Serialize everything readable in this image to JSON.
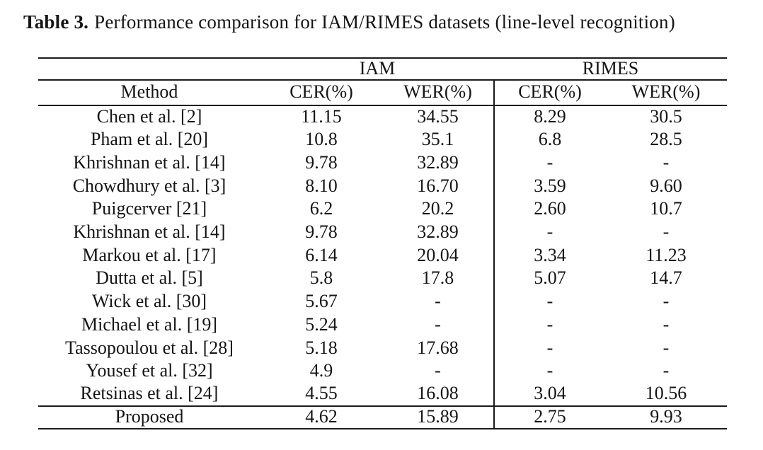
{
  "caption": {
    "label": "Table 3.",
    "text": "Performance comparison for IAM/RIMES datasets (line-level recognition)"
  },
  "table": {
    "group_headers": [
      "IAM",
      "RIMES"
    ],
    "columns": [
      "Method",
      "CER(%)",
      "WER(%)",
      "CER(%)",
      "WER(%)"
    ],
    "rows": [
      {
        "method": "Chen et al. [2]",
        "iam_cer": "11.15",
        "iam_wer": "34.55",
        "rimes_cer": "8.29",
        "rimes_wer": "30.5"
      },
      {
        "method": "Pham et al. [20]",
        "iam_cer": "10.8",
        "iam_wer": "35.1",
        "rimes_cer": "6.8",
        "rimes_wer": "28.5"
      },
      {
        "method": "Khrishnan et al. [14]",
        "iam_cer": "9.78",
        "iam_wer": "32.89",
        "rimes_cer": "-",
        "rimes_wer": "-"
      },
      {
        "method": "Chowdhury et al. [3]",
        "iam_cer": "8.10",
        "iam_wer": "16.70",
        "rimes_cer": "3.59",
        "rimes_wer": "9.60"
      },
      {
        "method": "Puigcerver [21]",
        "iam_cer": "6.2",
        "iam_wer": "20.2",
        "rimes_cer": "2.60",
        "rimes_wer": "10.7"
      },
      {
        "method": "Khrishnan et al. [14]",
        "iam_cer": "9.78",
        "iam_wer": "32.89",
        "rimes_cer": "-",
        "rimes_wer": "-"
      },
      {
        "method": "Markou et al. [17]",
        "iam_cer": "6.14",
        "iam_wer": "20.04",
        "rimes_cer": "3.34",
        "rimes_wer": "11.23"
      },
      {
        "method": "Dutta et al. [5]",
        "iam_cer": "5.8",
        "iam_wer": "17.8",
        "rimes_cer": "5.07",
        "rimes_wer": "14.7"
      },
      {
        "method": "Wick et al. [30]",
        "iam_cer": "5.67",
        "iam_wer": "-",
        "rimes_cer": "-",
        "rimes_wer": "-"
      },
      {
        "method": "Michael et al. [19]",
        "iam_cer": "5.24",
        "iam_wer": "-",
        "rimes_cer": "-",
        "rimes_wer": "-"
      },
      {
        "method": "Tassopoulou et al. [28]",
        "iam_cer": "5.18",
        "iam_wer": "17.68",
        "rimes_cer": "-",
        "rimes_wer": "-"
      },
      {
        "method": "Yousef et al. [32]",
        "iam_cer": "4.9",
        "iam_wer": "-",
        "rimes_cer": "-",
        "rimes_wer": "-"
      },
      {
        "method": "Retsinas et al. [24]",
        "iam_cer": "4.55",
        "iam_wer": "16.08",
        "rimes_cer": "3.04",
        "rimes_wer": "10.56"
      }
    ],
    "footer_row": {
      "method": "Proposed",
      "iam_cer": "4.62",
      "iam_wer": "15.89",
      "rimes_cer": "2.75",
      "rimes_wer": "9.93"
    }
  },
  "colors": {
    "background": "#ffffff",
    "text": "#151515",
    "rule": "#1b1b1b"
  }
}
